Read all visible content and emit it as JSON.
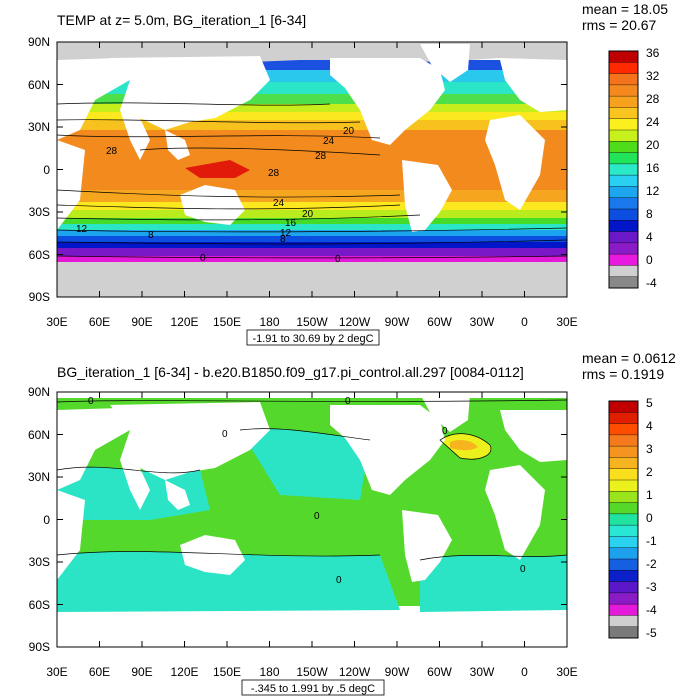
{
  "panels": [
    {
      "title": "TEMP at z=   5.0m, BG_iteration_1 [6-34]",
      "mean": "mean = 18.05",
      "rms": "rms = 20.67",
      "range_label": "-1.91 to 30.69 by 2 degC",
      "lat_labels": [
        "90N",
        "60N",
        "30N",
        "0",
        "30S",
        "60S",
        "90S"
      ],
      "lon_labels": [
        "30E",
        "60E",
        "90E",
        "120E",
        "150E",
        "180",
        "150W",
        "120W",
        "90W",
        "60W",
        "30W",
        "0",
        "30E"
      ],
      "colorbar": {
        "labels": [
          "36",
          "32",
          "28",
          "24",
          "20",
          "16",
          "12",
          "8",
          "4",
          "0",
          "-4"
        ],
        "colors": [
          "#c00000",
          "#ff2a00",
          "#f5731b",
          "#f48a1f",
          "#f7a21f",
          "#f9c51e",
          "#fcef1e",
          "#c8f01c",
          "#4fdc1b",
          "#21e45a",
          "#2be8c7",
          "#29d0f2",
          "#1da6f0",
          "#1979ec",
          "#0c4fe0",
          "#0016c8",
          "#6a18c8",
          "#8a1cc8",
          "#e91ae0",
          "#d0d0d0",
          "#888888"
        ]
      },
      "contour_labels": [
        "20",
        "24",
        "28",
        "28",
        "24",
        "20",
        "16",
        "12",
        "8",
        "12",
        "8",
        "0",
        "0",
        "28"
      ]
    },
    {
      "title": "BG_iteration_1 [6-34] - b.e20.B1850.f09_g17.pi_control.all.297 [0084-0112]",
      "mean": "mean = 0.0612",
      "rms": "rms = 0.1919",
      "range_label": "-.345 to 1.991 by .5 degC",
      "lat_labels": [
        "90N",
        "60N",
        "30N",
        "0",
        "30S",
        "60S",
        "90S"
      ],
      "lon_labels": [
        "30E",
        "60E",
        "90E",
        "120E",
        "150E",
        "180",
        "150W",
        "120W",
        "90W",
        "60W",
        "30W",
        "0",
        "30E"
      ],
      "colorbar": {
        "labels": [
          "5",
          "4",
          "3",
          "2",
          "1",
          "0",
          "-1",
          "-2",
          "-3",
          "-4",
          "-5"
        ],
        "colors": [
          "#c00000",
          "#e01e00",
          "#ff4d00",
          "#f57a1c",
          "#f5951f",
          "#f7b41e",
          "#fadf1e",
          "#ecf01c",
          "#9ae41b",
          "#54d82a",
          "#21e3a0",
          "#28e7d4",
          "#2ad2f0",
          "#1da0ee",
          "#1560e0",
          "#0b20c8",
          "#5a18c8",
          "#8a1cc8",
          "#e31ad8",
          "#cfcfcf",
          "#7a7a7a"
        ]
      },
      "contour_labels": [
        "0",
        "0",
        "0",
        "0",
        "0",
        "0",
        "0"
      ]
    }
  ]
}
